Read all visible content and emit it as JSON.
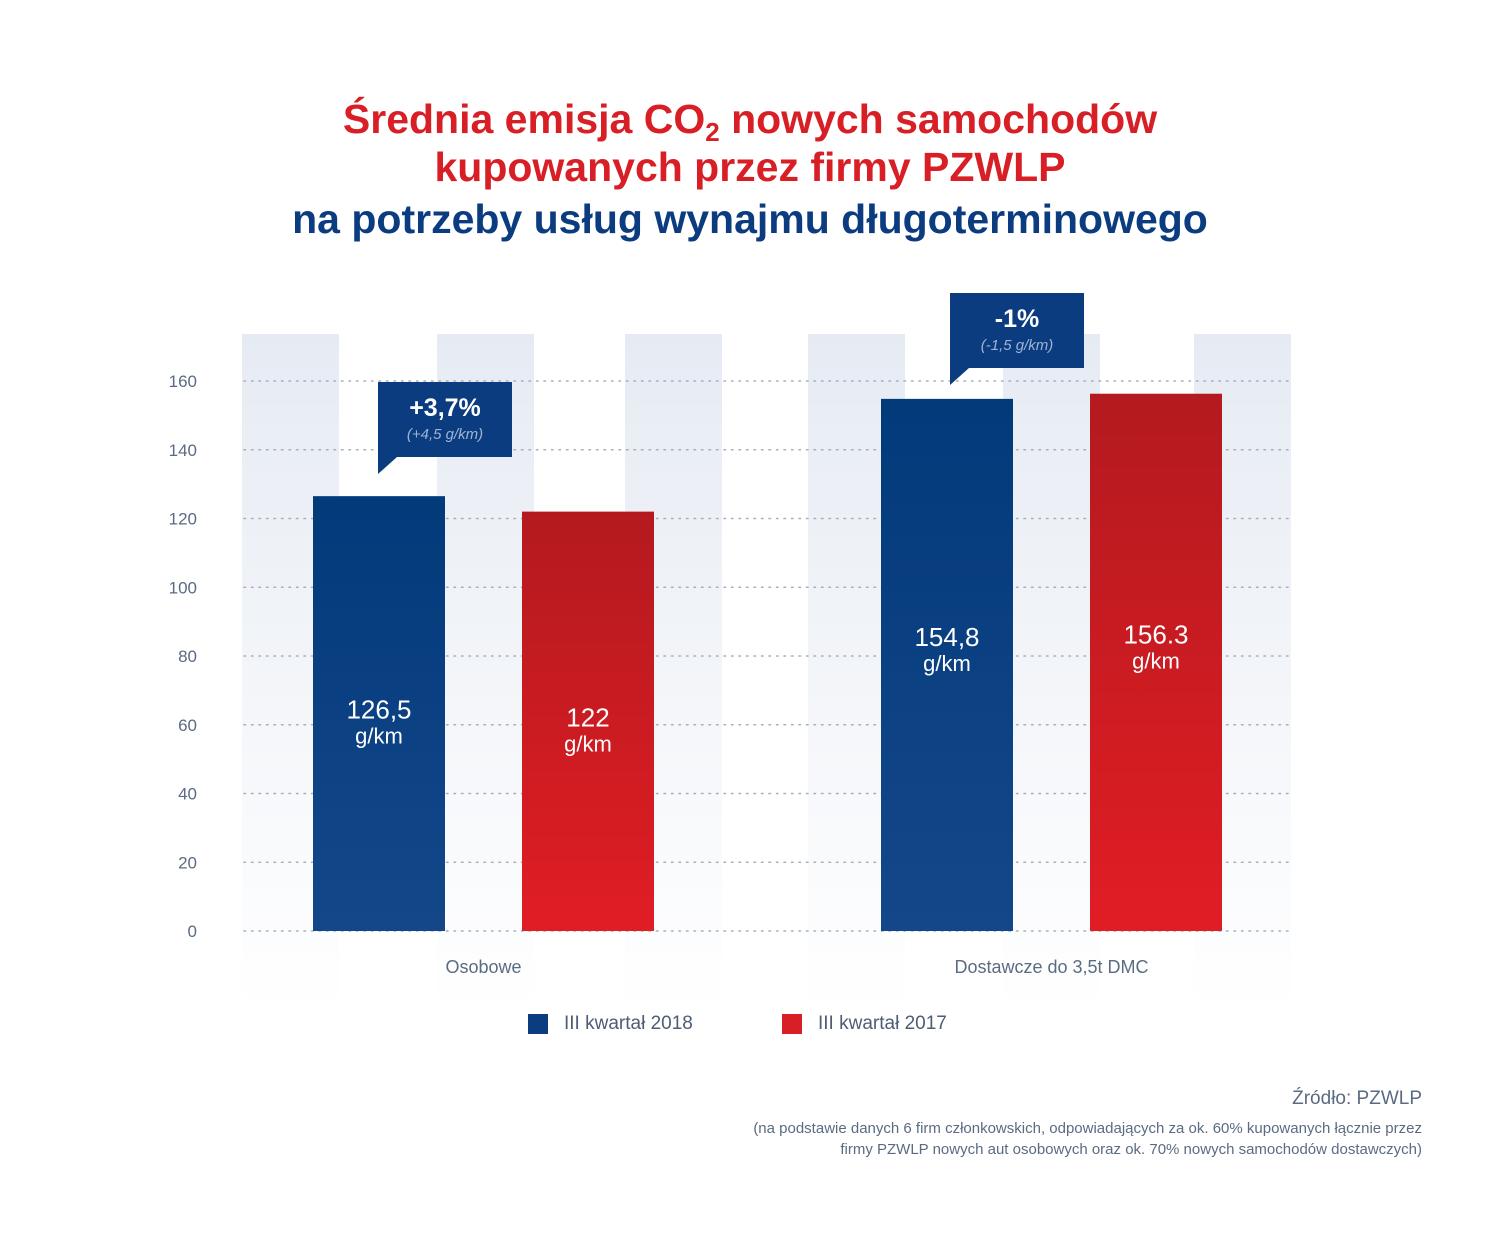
{
  "title": {
    "line1_before": "Średnia emisja CO",
    "line1_sub": "2",
    "line1_after": " nowych samochodów",
    "line2": "kupowanych przez firmy PZWLP",
    "line3": "na potrzeby usług wynajmu długoterminowego"
  },
  "colors": {
    "blue": "#0b3c7f",
    "red": "#d81f26",
    "title_red": "#d81f26",
    "text_gray": "#5b6b82"
  },
  "chart_data": {
    "type": "bar",
    "categories": [
      "Osobowe",
      "Dostawcze do 3,5t DMC"
    ],
    "series": [
      {
        "name": "III kwartał 2018",
        "values": [
          126.5,
          154.8
        ],
        "labels": [
          [
            "126,5",
            "g/km"
          ],
          [
            "154,8",
            "g/km"
          ]
        ],
        "color": "#0b3c7f"
      },
      {
        "name": "III kwartał 2017",
        "values": [
          122,
          156.3
        ],
        "labels": [
          [
            "122",
            "g/km"
          ],
          [
            "156.3",
            "g/km"
          ]
        ],
        "color": "#d81f26"
      }
    ],
    "callouts": [
      {
        "category": "Osobowe",
        "main": "+3,7%",
        "sub": "(+4,5 g/km)"
      },
      {
        "category": "Dostawcze do 3,5t DMC",
        "main": "-1%",
        "sub": "(-1,5 g/km)"
      }
    ],
    "yticks": [
      0,
      20,
      40,
      60,
      80,
      100,
      120,
      140,
      160
    ],
    "ylim": [
      0,
      160
    ],
    "grid": "dotted-horizontal",
    "legend_position": "bottom"
  },
  "legend": [
    {
      "label": "III kwartał 2018",
      "color": "#0b3c7f"
    },
    {
      "label": "III kwartał 2017",
      "color": "#d81f26"
    }
  ],
  "source": {
    "label": "Źródło: PZWLP",
    "note_line1": "(na podstawie danych 6 firm członkowskich, odpowiadających za ok. 60% kupowanych łącznie przez",
    "note_line2": "firmy PZWLP nowych aut osobowych oraz ok. 70% nowych samochodów dostawczych)"
  }
}
